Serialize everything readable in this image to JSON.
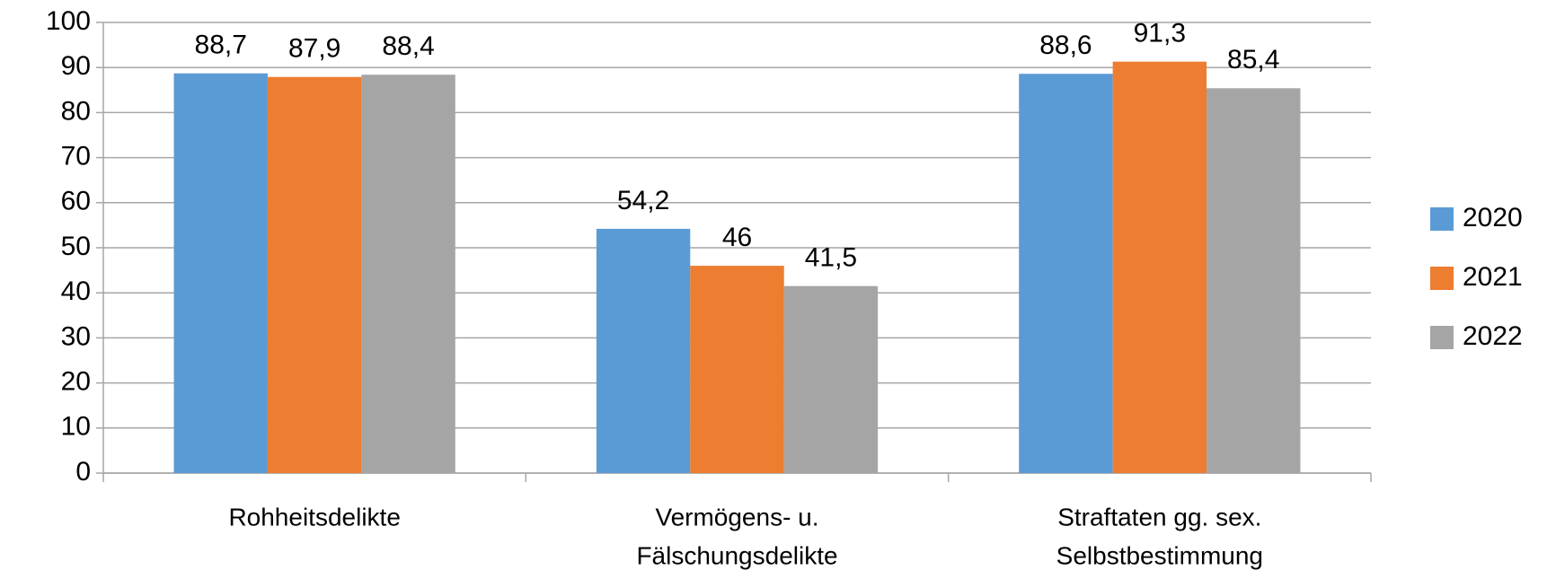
{
  "chart_data": {
    "type": "bar",
    "categories": [
      [
        "Rohheitsdelikte"
      ],
      [
        "Vermögens- u.",
        "Fälschungsdelikte"
      ],
      [
        "Straftaten gg. sex.",
        "Selbstbestimmung"
      ]
    ],
    "series": [
      {
        "name": "2020",
        "color": "#5b9bd5",
        "values": [
          88.7,
          54.2,
          88.6
        ],
        "value_labels": [
          "88,7",
          "54,2",
          "88,6"
        ]
      },
      {
        "name": "2021",
        "color": "#ed7d31",
        "values": [
          87.9,
          46,
          91.3
        ],
        "value_labels": [
          "87,9",
          "46",
          "91,3"
        ]
      },
      {
        "name": "2022",
        "color": "#a5a5a5",
        "values": [
          88.4,
          41.5,
          85.4
        ],
        "value_labels": [
          "88,4",
          "41,5",
          "85,4"
        ]
      }
    ],
    "ylim": [
      0,
      100
    ],
    "yticks": [
      0,
      10,
      20,
      30,
      40,
      50,
      60,
      70,
      80,
      90,
      100
    ],
    "grid": true,
    "legend": "right"
  }
}
